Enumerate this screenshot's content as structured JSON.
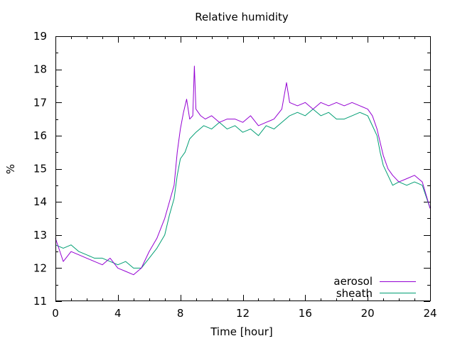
{
  "chart_data": {
    "type": "line",
    "title": "Relative humidity",
    "xlabel": "Time [hour]",
    "ylabel": "%",
    "xlim": [
      0,
      24
    ],
    "ylim": [
      11,
      19
    ],
    "x_ticks": [
      0,
      4,
      8,
      12,
      16,
      20,
      24
    ],
    "y_ticks": [
      11,
      12,
      13,
      14,
      15,
      16,
      17,
      18,
      19
    ],
    "x_minor_step": 1,
    "y_minor_step": 0.5,
    "grid": false,
    "legend_position": "bottom-right",
    "series": [
      {
        "name": "aerosol",
        "color": "#9400d3",
        "x": [
          0,
          0.5,
          1,
          1.5,
          2,
          2.5,
          3,
          3.5,
          4,
          4.5,
          5,
          5.5,
          6,
          6.5,
          7,
          7.3,
          7.6,
          7.8,
          8,
          8.2,
          8.4,
          8.6,
          8.8,
          8.9,
          9,
          9.3,
          9.6,
          10,
          10.5,
          11,
          11.5,
          12,
          12.5,
          13,
          13.5,
          14,
          14.5,
          14.8,
          15,
          15.5,
          16,
          16.5,
          17,
          17.5,
          18,
          18.5,
          19,
          19.5,
          20,
          20.3,
          20.6,
          20.8,
          21,
          21.3,
          21.6,
          22,
          22.5,
          23,
          23.5,
          24
        ],
        "values": [
          12.9,
          12.2,
          12.5,
          12.4,
          12.3,
          12.2,
          12.1,
          12.3,
          12.0,
          11.9,
          11.8,
          12.0,
          12.5,
          12.9,
          13.5,
          14.0,
          14.5,
          15.5,
          16.2,
          16.7,
          17.1,
          16.5,
          16.6,
          18.1,
          16.8,
          16.6,
          16.5,
          16.6,
          16.4,
          16.5,
          16.5,
          16.4,
          16.6,
          16.3,
          16.4,
          16.5,
          16.8,
          17.6,
          17.0,
          16.9,
          17.0,
          16.8,
          17.0,
          16.9,
          17.0,
          16.9,
          17.0,
          16.9,
          16.8,
          16.6,
          16.2,
          15.8,
          15.4,
          15.0,
          14.8,
          14.6,
          14.7,
          14.8,
          14.6,
          13.8
        ]
      },
      {
        "name": "sheath",
        "color": "#009e73",
        "x": [
          0,
          0.5,
          1,
          1.5,
          2,
          2.5,
          3,
          3.5,
          4,
          4.5,
          5,
          5.5,
          6,
          6.5,
          7,
          7.3,
          7.6,
          7.8,
          8,
          8.3,
          8.6,
          9,
          9.5,
          10,
          10.5,
          11,
          11.5,
          12,
          12.5,
          13,
          13.5,
          14,
          14.5,
          15,
          15.5,
          16,
          16.5,
          17,
          17.5,
          18,
          18.5,
          19,
          19.5,
          20,
          20.3,
          20.6,
          20.8,
          21,
          21.3,
          21.6,
          22,
          22.5,
          23,
          23.5,
          24
        ],
        "values": [
          12.7,
          12.6,
          12.7,
          12.5,
          12.4,
          12.3,
          12.3,
          12.2,
          12.1,
          12.2,
          12.0,
          12.0,
          12.3,
          12.6,
          13.0,
          13.6,
          14.1,
          14.8,
          15.3,
          15.5,
          15.9,
          16.1,
          16.3,
          16.2,
          16.4,
          16.2,
          16.3,
          16.1,
          16.2,
          16.0,
          16.3,
          16.2,
          16.4,
          16.6,
          16.7,
          16.6,
          16.8,
          16.6,
          16.7,
          16.5,
          16.5,
          16.6,
          16.7,
          16.6,
          16.3,
          16.0,
          15.5,
          15.1,
          14.8,
          14.5,
          14.6,
          14.5,
          14.6,
          14.5,
          13.8
        ]
      }
    ]
  }
}
